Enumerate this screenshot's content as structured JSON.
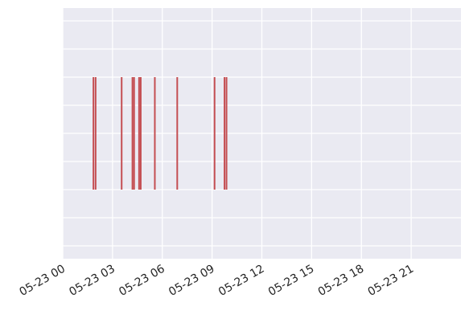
{
  "chart_data": {
    "type": "eventplot",
    "title": "",
    "xlabel": "",
    "ylabel": "",
    "x_tick_labels": [
      "05-23 00",
      "05-23 03",
      "05-23 06",
      "05-23 09",
      "05-23 12",
      "05-23 15",
      "05-23 18",
      "05-23 21"
    ],
    "x_tick_hours": [
      0,
      3,
      6,
      9,
      12,
      15,
      18,
      21
    ],
    "xlim_hours": [
      0,
      24
    ],
    "y_grid_lines": 9,
    "grid": true,
    "style": "seaborn-darkgrid",
    "colors": {
      "background": "#eaeaf2",
      "grid": "#ffffff",
      "event": "#c44e52"
    },
    "events_hours": [
      1.85,
      1.98,
      3.55,
      4.2,
      4.3,
      4.6,
      4.7,
      5.55,
      6.9,
      9.15,
      9.75,
      9.87
    ]
  }
}
